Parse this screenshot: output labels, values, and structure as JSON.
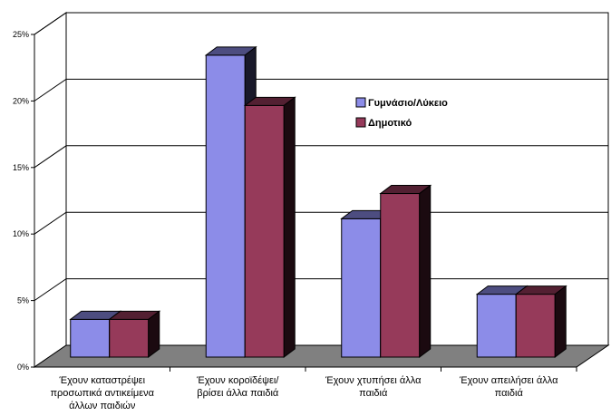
{
  "chart_data": {
    "type": "bar",
    "style": "3d-clustered-column",
    "categories": [
      [
        "Έχουν καταστρέψει",
        "προσωπικά αντικείμενα",
        "άλλων παιδιών"
      ],
      [
        "Έχουν κοροϊδέψει/",
        "βρίσει άλλα παιδιά"
      ],
      [
        "Έχουν χτυπήσει άλλα",
        "παιδιά"
      ],
      [
        "Έχουν απειλήσει άλλα",
        "παιδιά"
      ]
    ],
    "series": [
      {
        "name": "Γυμνάσιο/Λύκειο",
        "values": [
          3,
          24,
          11,
          5
        ],
        "color": "#8c8ce8"
      },
      {
        "name": "Δημοτικό",
        "values": [
          3,
          20,
          13,
          5
        ],
        "color": "#963a5a"
      }
    ],
    "ylim": [
      0,
      25
    ],
    "yticks": [
      0,
      5,
      10,
      15,
      20,
      25
    ],
    "ytick_labels": [
      "0%",
      "5%",
      "10%",
      "15%",
      "20%",
      "25%"
    ],
    "grid": true,
    "legend_position": "right"
  }
}
